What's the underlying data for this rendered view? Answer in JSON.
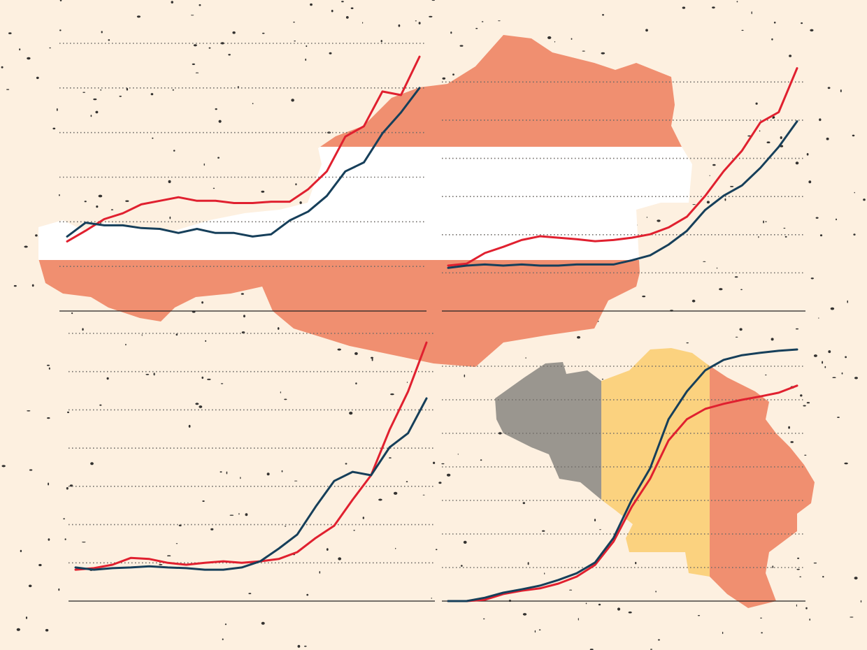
{
  "chart_data": [
    {
      "type": "line",
      "ylim": [
        0,
        6
      ],
      "yticks": [
        1,
        2,
        3,
        4,
        5,
        6
      ],
      "grid": true,
      "series": [
        {
          "color": "#e0202f",
          "values": [
            1.56,
            1.8,
            2.06,
            2.19,
            2.39,
            2.47,
            2.55,
            2.47,
            2.47,
            2.42,
            2.42,
            2.45,
            2.45,
            2.73,
            3.13,
            3.91,
            4.14,
            4.92,
            4.84,
            5.7
          ]
        },
        {
          "color": "#163f5a",
          "values": [
            1.67,
            1.98,
            1.92,
            1.92,
            1.86,
            1.84,
            1.75,
            1.84,
            1.75,
            1.75,
            1.67,
            1.72,
            2.03,
            2.23,
            2.58,
            3.13,
            3.33,
            3.98,
            4.45,
            5.0
          ]
        }
      ]
    },
    {
      "type": "line",
      "ylim": [
        0,
        6.5
      ],
      "yticks": [
        1,
        2,
        3,
        4,
        5,
        6
      ],
      "grid": true,
      "series": [
        {
          "color": "#e0202f",
          "values": [
            1.19,
            1.24,
            1.52,
            1.68,
            1.86,
            1.96,
            1.92,
            1.88,
            1.83,
            1.86,
            1.92,
            2.01,
            2.19,
            2.47,
            3.02,
            3.66,
            4.2,
            4.94,
            5.21,
            6.36
          ]
        },
        {
          "color": "#163f5a",
          "values": [
            1.13,
            1.19,
            1.22,
            1.19,
            1.22,
            1.19,
            1.19,
            1.22,
            1.22,
            1.22,
            1.33,
            1.46,
            1.74,
            2.1,
            2.65,
            3.02,
            3.29,
            3.75,
            4.3,
            4.97
          ]
        }
      ]
    },
    {
      "type": "line",
      "ylim": [
        0,
        7
      ],
      "yticks": [
        1,
        2,
        3,
        4,
        5,
        6,
        7
      ],
      "grid": true,
      "series": [
        {
          "color": "#e0202f",
          "values": [
            0.82,
            0.86,
            0.95,
            1.13,
            1.1,
            1.0,
            0.95,
            1.0,
            1.04,
            1.0,
            1.04,
            1.1,
            1.28,
            1.65,
            1.97,
            2.65,
            3.29,
            4.48,
            5.48,
            6.76
          ]
        },
        {
          "color": "#163f5a",
          "values": [
            0.88,
            0.82,
            0.86,
            0.88,
            0.91,
            0.88,
            0.86,
            0.82,
            0.82,
            0.88,
            1.04,
            1.37,
            1.74,
            2.47,
            3.14,
            3.38,
            3.29,
            4.02,
            4.39,
            5.3
          ]
        }
      ]
    },
    {
      "type": "line",
      "ylim": [
        0,
        7.5
      ],
      "yticks": [
        1,
        2,
        3,
        4,
        5,
        6,
        7
      ],
      "grid": true,
      "series": [
        {
          "color": "#e0202f",
          "values": [
            0,
            0,
            0.04,
            0.21,
            0.31,
            0.38,
            0.52,
            0.73,
            1.08,
            1.77,
            2.81,
            3.65,
            4.79,
            5.42,
            5.73,
            5.88,
            6.0,
            6.1,
            6.21,
            6.42
          ]
        },
        {
          "color": "#163f5a",
          "values": [
            0,
            0,
            0.1,
            0.25,
            0.35,
            0.46,
            0.63,
            0.83,
            1.15,
            1.88,
            3.02,
            3.96,
            5.42,
            6.25,
            6.88,
            7.19,
            7.33,
            7.4,
            7.46,
            7.5
          ]
        }
      ]
    }
  ]
}
